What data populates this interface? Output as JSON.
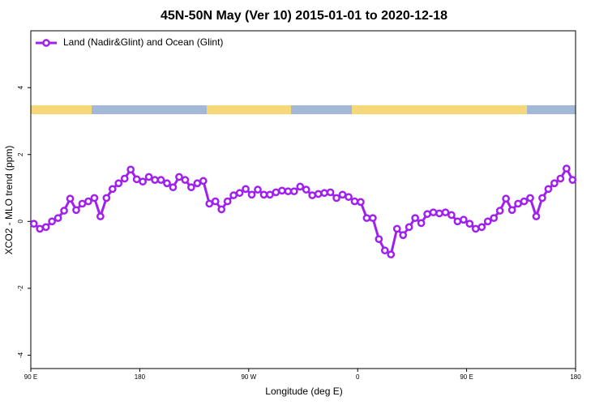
{
  "chart_data": {
    "type": "line",
    "title": "45N-50N May (Ver 10)   2015-01-01 to 2020-12-18",
    "xlabel": "Longitude (deg E)",
    "ylabel": "XCO2 - MLO trend (ppm)",
    "x": [
      92.5,
      97.5,
      102.5,
      107.5,
      112.5,
      117.5,
      122.5,
      127.5,
      132.5,
      137.5,
      142.5,
      147.5,
      152.5,
      157.5,
      162.5,
      167.5,
      172.5,
      177.5,
      182.5,
      187.5,
      192.5,
      197.5,
      202.5,
      207.5,
      212.5,
      217.5,
      222.5,
      227.5,
      232.5,
      237.5,
      242.5,
      247.5,
      252.5,
      257.5,
      262.5,
      267.5,
      272.5,
      277.5,
      282.5,
      287.5,
      292.5,
      297.5,
      302.5,
      307.5,
      312.5,
      317.5,
      322.5,
      327.5,
      332.5,
      337.5,
      342.5,
      347.5,
      352.5,
      357.5,
      362.5,
      367.5,
      372.5,
      377.5,
      382.5,
      387.5,
      392.5,
      397.5,
      402.5,
      407.5,
      412.5,
      417.5,
      422.5,
      427.5,
      432.5,
      437.5,
      442.5,
      447.5,
      452.5,
      457.5,
      462.5,
      467.5,
      472.5,
      477.5,
      482.5,
      487.5,
      492.5,
      497.5,
      502.5,
      507.5,
      512.5,
      517.5,
      522.5,
      527.5,
      532.5,
      537.5
    ],
    "series": [
      {
        "name": "Land (Nadir&Glint) and Ocean (Glint)",
        "color": "#a020f0",
        "values": [
          -0.07,
          -0.22,
          -0.17,
          0.0,
          0.1,
          0.32,
          0.68,
          0.34,
          0.53,
          0.6,
          0.7,
          0.15,
          0.7,
          0.97,
          1.14,
          1.28,
          1.55,
          1.26,
          1.19,
          1.33,
          1.24,
          1.24,
          1.14,
          1.02,
          1.33,
          1.24,
          1.02,
          1.14,
          1.21,
          0.53,
          0.6,
          0.36,
          0.6,
          0.78,
          0.85,
          0.97,
          0.8,
          0.95,
          0.8,
          0.8,
          0.87,
          0.92,
          0.9,
          0.9,
          1.04,
          0.95,
          0.78,
          0.82,
          0.85,
          0.87,
          0.7,
          0.8,
          0.73,
          0.6,
          0.58,
          0.1,
          0.1,
          -0.53,
          -0.87,
          -0.99,
          -0.22,
          -0.41,
          -0.17,
          0.1,
          -0.05,
          0.22,
          0.27,
          0.24,
          0.27,
          0.19,
          0.0,
          0.05,
          -0.07,
          -0.22,
          -0.17,
          0.0,
          0.1,
          0.32,
          0.68,
          0.34,
          0.53,
          0.6,
          0.7,
          0.15,
          0.7,
          0.97,
          1.14,
          1.28,
          1.58,
          1.24
        ]
      }
    ],
    "xlim": [
      90,
      540
    ],
    "xticks": [
      {
        "value": 90,
        "label": "90 E"
      },
      {
        "value": 180,
        "label": "180"
      },
      {
        "value": 270,
        "label": "90 W"
      },
      {
        "value": 360,
        "label": "0"
      },
      {
        "value": 450,
        "label": "90 E"
      },
      {
        "value": 540,
        "label": "180"
      }
    ],
    "ylim": [
      -4.4,
      5.7
    ],
    "yticks": [
      -4,
      -2,
      0,
      2,
      4
    ],
    "legend": "top-left"
  }
}
